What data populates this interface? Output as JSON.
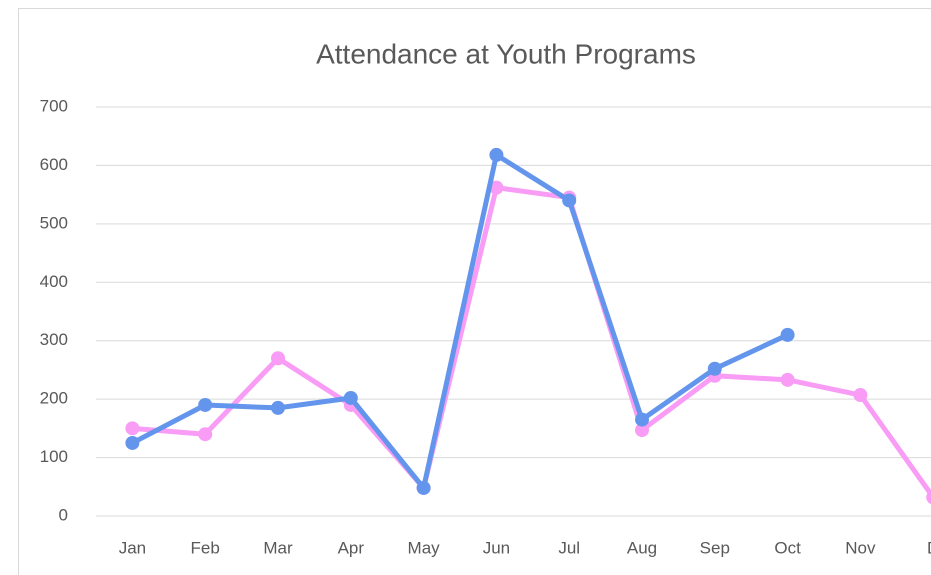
{
  "chart_data": {
    "type": "line",
    "title": "Attendance at Youth Programs",
    "categories": [
      "Jan",
      "Feb",
      "Mar",
      "Apr",
      "May",
      "Jun",
      "Jul",
      "Aug",
      "Sep",
      "Oct",
      "Nov",
      "D"
    ],
    "series": [
      {
        "color": "#f89cf5",
        "values": [
          150,
          140,
          270,
          190,
          48,
          562,
          545,
          147,
          240,
          233,
          207,
          32
        ]
      },
      {
        "color": "#6495ed",
        "values": [
          125,
          190,
          185,
          202,
          48,
          618,
          540,
          165,
          252,
          310,
          null,
          null
        ]
      }
    ],
    "ylim": [
      0,
      700
    ],
    "yticks": [
      0,
      100,
      200,
      300,
      400,
      500,
      600,
      700
    ],
    "grid": true
  }
}
